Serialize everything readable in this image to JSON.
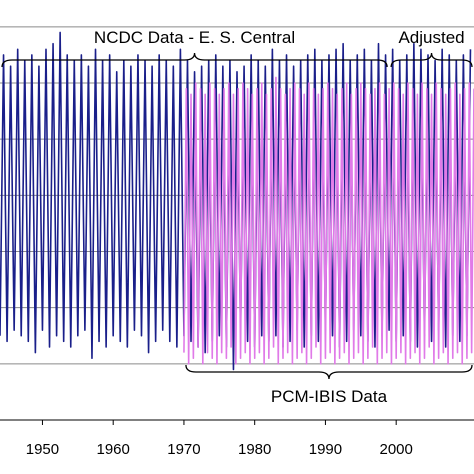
{
  "chart_data": {
    "type": "line",
    "xlim": [
      1944,
      2011
    ],
    "ylim": [
      0,
      7.3
    ],
    "x_ticks": [
      1950,
      1960,
      1970,
      1980,
      1990,
      2000
    ],
    "x_tick_labels": [
      "1950",
      "1960",
      "1970",
      "1980",
      "1990",
      "2000"
    ],
    "grid": "horizontal",
    "annotations": [
      {
        "text": "NCDC Data - E. S. Central",
        "span": [
          1944,
          1999
        ],
        "placement": "above"
      },
      {
        "text": "Adjusted",
        "span": [
          1999,
          2011
        ],
        "placement": "above"
      },
      {
        "text": "PCM-IBIS Data",
        "span": [
          1970,
          2011
        ],
        "placement": "below"
      }
    ],
    "series": [
      {
        "color": "#1a1f8a",
        "x_range": [
          1944,
          2011
        ],
        "cycles_per_year": 1,
        "peaks": [
          6.5,
          6.3,
          6.6,
          6.4,
          6.5,
          6.3,
          6.6,
          6.7,
          6.9,
          6.5,
          6.4,
          6.5,
          6.3,
          6.6,
          6.4,
          6.5,
          6.2,
          6.4,
          6.3,
          6.5,
          6.4,
          6.3,
          6.5,
          6.4,
          6.3,
          6.6,
          6.4,
          6.2,
          6.3,
          6.4,
          6.5,
          6.3,
          6.4,
          6.2,
          6.3,
          6.5,
          6.4,
          6.3,
          6.6,
          6.4,
          6.5,
          6.3,
          6.4,
          6.5,
          6.6,
          6.4,
          6.5,
          6.6,
          6.7,
          6.4,
          6.5,
          6.6,
          6.4,
          6.7,
          6.5,
          6.6,
          6.4,
          6.5,
          6.7,
          6.6,
          6.5,
          6.4,
          6.6,
          6.5,
          6.4,
          6.5,
          6.6
        ],
        "troughs": [
          1.5,
          1.4,
          1.6,
          1.5,
          1.4,
          1.2,
          1.6,
          1.3,
          1.5,
          1.4,
          1.3,
          1.5,
          1.6,
          1.1,
          1.4,
          1.3,
          1.5,
          1.4,
          1.3,
          1.6,
          1.5,
          1.2,
          1.4,
          1.6,
          1.4,
          1.3,
          1.5,
          1.4,
          1.3,
          1.2,
          1.4,
          1.5,
          1.3,
          0.9,
          1.6,
          1.4,
          1.3,
          1.5,
          1.4,
          1.5,
          1.3,
          1.4,
          1.6,
          1.3,
          1.5,
          1.4,
          1.6,
          1.5,
          1.3,
          1.4,
          1.6,
          1.5,
          1.4,
          1.3,
          1.5,
          1.6,
          1.4,
          1.5,
          1.4,
          1.3,
          1.5,
          1.4,
          1.6,
          1.3,
          1.5,
          1.4,
          1.5
        ]
      },
      {
        "color": "#e07ae8",
        "x_range": [
          1970,
          2011
        ],
        "cycles_per_year": 1.5,
        "peaks": [
          5.9,
          5.8,
          6.0,
          5.9,
          5.8,
          6.0,
          5.9,
          5.8,
          5.9,
          6.0,
          5.8,
          5.9,
          6.0,
          5.9,
          5.8,
          5.9,
          6.0,
          5.8,
          5.9,
          6.1,
          5.9,
          5.8,
          5.9,
          6.0,
          5.9,
          5.8,
          6.0,
          5.9,
          5.8,
          5.9,
          6.0,
          5.9,
          5.8,
          5.9,
          6.0,
          5.8,
          5.9,
          6.0,
          5.9,
          5.8,
          5.9,
          6.0,
          5.8,
          5.9,
          6.0,
          5.9,
          5.8,
          6.0,
          5.9,
          5.8,
          6.0,
          5.9,
          5.8,
          6.0,
          5.9,
          5.8,
          5.9,
          6.0,
          5.8,
          5.9,
          6.0,
          5.9
        ],
        "troughs": [
          1.2,
          1.0,
          1.1,
          1.3,
          1.0,
          1.2,
          1.1,
          1.0,
          1.2,
          1.1,
          1.3,
          1.0,
          1.1,
          1.2,
          1.0,
          1.1,
          1.2,
          1.0,
          1.1,
          1.3,
          1.0,
          1.1,
          1.2,
          1.0,
          1.1,
          1.2,
          1.0,
          1.1,
          1.3,
          1.0,
          1.1,
          1.2,
          1.0,
          1.1,
          1.2,
          1.0,
          1.1,
          1.2,
          1.0,
          1.1,
          1.3,
          1.0,
          1.1,
          1.2,
          1.0,
          1.1,
          1.2,
          1.0,
          1.1,
          1.2,
          1.0,
          1.1,
          1.3,
          1.0,
          1.1,
          1.2,
          1.0,
          1.1,
          1.2,
          1.0,
          1.1,
          1.2
        ]
      }
    ]
  }
}
